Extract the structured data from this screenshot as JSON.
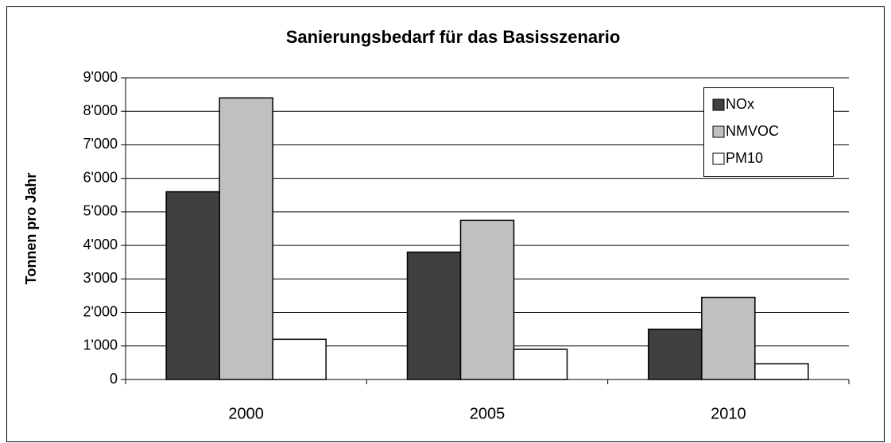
{
  "chart_data": {
    "type": "bar",
    "title": "Sanierungsbedarf für das Basisszenario",
    "y_label": "Tonnen pro Jahr",
    "categories": [
      "2000",
      "2005",
      "2010"
    ],
    "series": [
      {
        "name": "NOx",
        "color": "#404040",
        "values": [
          5600,
          3800,
          1500
        ]
      },
      {
        "name": "NMVOC",
        "color": "#c0c0c0",
        "values": [
          8400,
          4750,
          2450
        ]
      },
      {
        "name": "PM10",
        "color": "#ffffff",
        "values": [
          1200,
          900,
          470
        ]
      }
    ],
    "ylim": [
      0,
      9000
    ],
    "yticks": [
      0,
      {
        "value": 1000,
        "label": "1'000"
      },
      {
        "value": 2000,
        "label": "2'000"
      },
      {
        "value": 3000,
        "label": "3'000"
      },
      {
        "value": 4000,
        "label": "4'000"
      },
      {
        "value": 5000,
        "label": "5'000"
      },
      {
        "value": 6000,
        "label": "6'000"
      },
      {
        "value": 7000,
        "label": "7'000"
      },
      {
        "value": 8000,
        "label": "8'000"
      },
      {
        "value": 9000,
        "label": "9'000"
      }
    ],
    "grid": true,
    "legend": "upper right"
  }
}
